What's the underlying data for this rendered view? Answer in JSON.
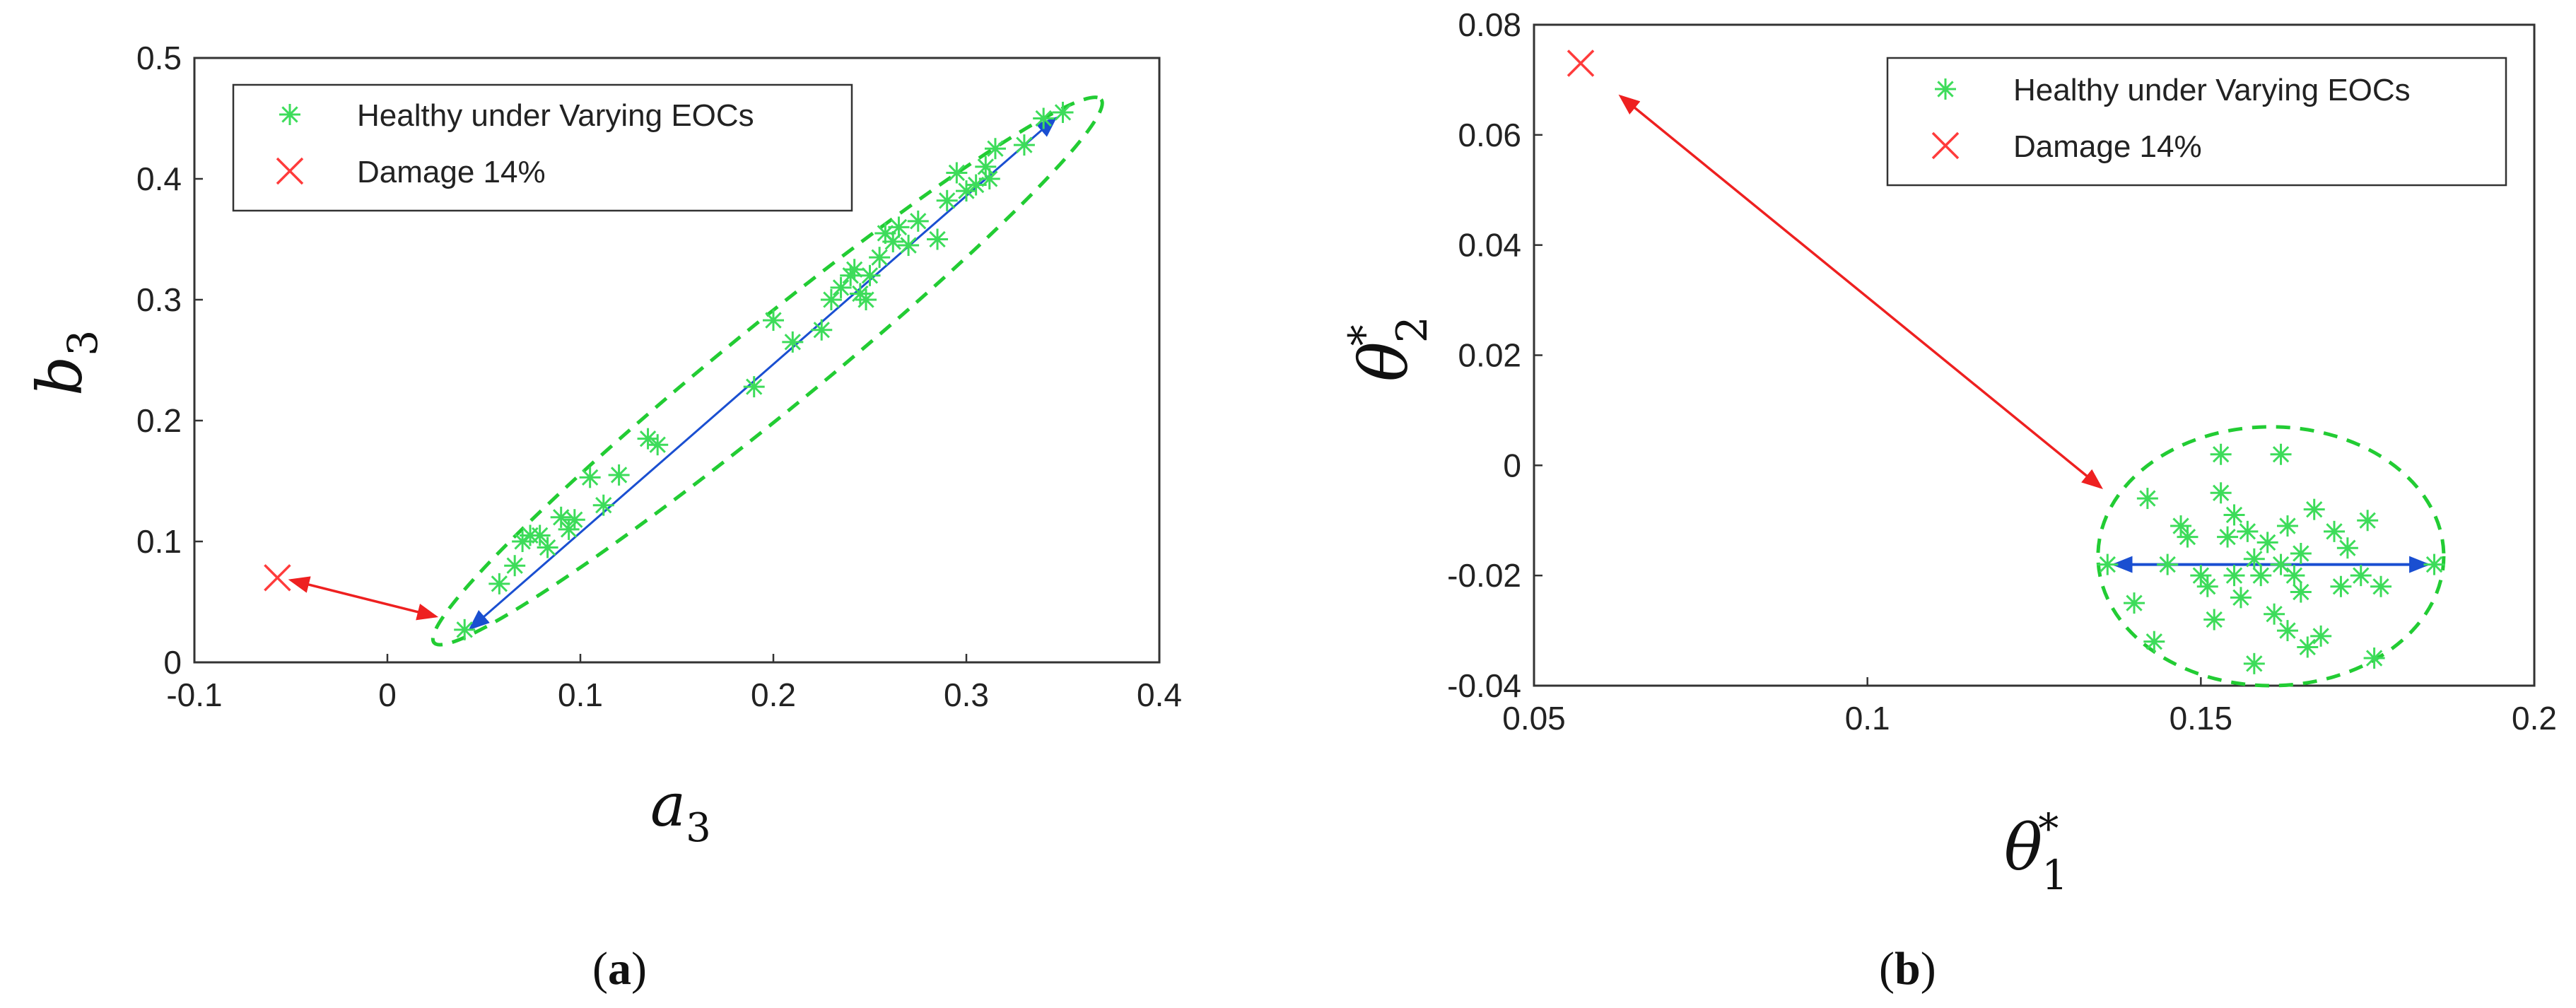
{
  "captions": {
    "a": "a",
    "b": "b"
  },
  "colors": {
    "healthy": "#3ddc5a",
    "damage": "#ff3b3b",
    "ellipse": "#22cc33",
    "blue_arrow": "#1a4fd1",
    "red_arrow": "#ee2020"
  },
  "chart_data": [
    {
      "type": "scatter",
      "panel": "a",
      "xlabel": {
        "base": "a",
        "sub": "3"
      },
      "ylabel": {
        "base": "b",
        "sub": "3"
      },
      "xlim": [
        -0.1,
        0.4
      ],
      "ylim": [
        0,
        0.5
      ],
      "xticks": [
        "-0.1",
        "0",
        "0.1",
        "0.2",
        "0.3",
        "0.4"
      ],
      "yticks": [
        "0",
        "0.1",
        "0.2",
        "0.3",
        "0.4",
        "0.5"
      ],
      "legend": {
        "position": "top-left",
        "entries": [
          {
            "label": "Healthy under Varying EOCs",
            "marker": "asterisk",
            "color": "#3ddc5a"
          },
          {
            "label": "Damage 14%",
            "marker": "x",
            "color": "#ff3b3b"
          }
        ]
      },
      "series": [
        {
          "name": "Healthy under Varying EOCs",
          "marker": "asterisk",
          "points": [
            [
              0.04,
              0.027
            ],
            [
              0.058,
              0.065
            ],
            [
              0.066,
              0.08
            ],
            [
              0.07,
              0.1
            ],
            [
              0.074,
              0.105
            ],
            [
              0.079,
              0.105
            ],
            [
              0.083,
              0.095
            ],
            [
              0.09,
              0.12
            ],
            [
              0.094,
              0.11
            ],
            [
              0.097,
              0.118
            ],
            [
              0.105,
              0.153
            ],
            [
              0.112,
              0.13
            ],
            [
              0.12,
              0.155
            ],
            [
              0.135,
              0.185
            ],
            [
              0.14,
              0.18
            ],
            [
              0.19,
              0.228
            ],
            [
              0.2,
              0.283
            ],
            [
              0.21,
              0.265
            ],
            [
              0.225,
              0.275
            ],
            [
              0.23,
              0.3
            ],
            [
              0.235,
              0.31
            ],
            [
              0.24,
              0.32
            ],
            [
              0.242,
              0.325
            ],
            [
              0.245,
              0.305
            ],
            [
              0.248,
              0.3
            ],
            [
              0.25,
              0.32
            ],
            [
              0.255,
              0.335
            ],
            [
              0.258,
              0.355
            ],
            [
              0.262,
              0.348
            ],
            [
              0.265,
              0.36
            ],
            [
              0.27,
              0.345
            ],
            [
              0.275,
              0.365
            ],
            [
              0.285,
              0.35
            ],
            [
              0.29,
              0.382
            ],
            [
              0.295,
              0.405
            ],
            [
              0.3,
              0.39
            ],
            [
              0.305,
              0.395
            ],
            [
              0.31,
              0.41
            ],
            [
              0.312,
              0.4
            ],
            [
              0.315,
              0.425
            ],
            [
              0.33,
              0.428
            ],
            [
              0.34,
              0.45
            ],
            [
              0.35,
              0.455
            ]
          ]
        },
        {
          "name": "Damage 14%",
          "marker": "x",
          "points": [
            [
              -0.057,
              0.07
            ]
          ]
        }
      ],
      "annotations": {
        "ellipse": {
          "cx": 0.197,
          "cy": 0.239,
          "semi_major_x_range": [
            0.027,
            0.366
          ],
          "note": "dashed"
        },
        "blue_arrow": [
          [
            0.043,
            0.028
          ],
          [
            0.346,
            0.45
          ]
        ],
        "red_arrow": [
          [
            -0.05,
            0.068
          ],
          [
            0.025,
            0.038
          ]
        ]
      }
    },
    {
      "type": "scatter",
      "panel": "b",
      "xlabel": {
        "base": "θ",
        "sub": "1",
        "sup": "*"
      },
      "ylabel": {
        "base": "θ",
        "sub": "2",
        "sup": "*"
      },
      "xlim": [
        0.05,
        0.2
      ],
      "ylim": [
        -0.04,
        0.08
      ],
      "xticks": [
        "0.05",
        "0.1",
        "0.15",
        "0.2"
      ],
      "yticks": [
        "-0.04",
        "-0.02",
        "0",
        "0.02",
        "0.04",
        "0.06",
        "0.08"
      ],
      "legend": {
        "position": "top-right",
        "entries": [
          {
            "label": "Healthy under Varying EOCs",
            "marker": "asterisk",
            "color": "#3ddc5a"
          },
          {
            "label": "Damage 14%",
            "marker": "x",
            "color": "#ff3b3b"
          }
        ]
      },
      "series": [
        {
          "name": "Healthy under Varying EOCs",
          "marker": "asterisk",
          "points": [
            [
              0.136,
              -0.018
            ],
            [
              0.14,
              -0.025
            ],
            [
              0.142,
              -0.006
            ],
            [
              0.143,
              -0.032
            ],
            [
              0.145,
              -0.018
            ],
            [
              0.147,
              -0.011
            ],
            [
              0.148,
              -0.013
            ],
            [
              0.15,
              -0.02
            ],
            [
              0.151,
              -0.022
            ],
            [
              0.152,
              -0.028
            ],
            [
              0.153,
              -0.005
            ],
            [
              0.153,
              0.002
            ],
            [
              0.154,
              -0.013
            ],
            [
              0.155,
              -0.009
            ],
            [
              0.155,
              -0.02
            ],
            [
              0.156,
              -0.024
            ],
            [
              0.157,
              -0.012
            ],
            [
              0.158,
              -0.017
            ],
            [
              0.158,
              -0.036
            ],
            [
              0.159,
              -0.02
            ],
            [
              0.16,
              -0.014
            ],
            [
              0.161,
              -0.027
            ],
            [
              0.162,
              -0.018
            ],
            [
              0.162,
              0.002
            ],
            [
              0.163,
              -0.03
            ],
            [
              0.163,
              -0.011
            ],
            [
              0.164,
              -0.02
            ],
            [
              0.165,
              -0.016
            ],
            [
              0.165,
              -0.023
            ],
            [
              0.166,
              -0.033
            ],
            [
              0.167,
              -0.008
            ],
            [
              0.168,
              -0.031
            ],
            [
              0.17,
              -0.012
            ],
            [
              0.171,
              -0.022
            ],
            [
              0.172,
              -0.015
            ],
            [
              0.174,
              -0.02
            ],
            [
              0.175,
              -0.01
            ],
            [
              0.176,
              -0.035
            ],
            [
              0.177,
              -0.022
            ],
            [
              0.185,
              -0.018
            ]
          ]
        },
        {
          "name": "Damage 14%",
          "marker": "x",
          "points": [
            [
              0.057,
              0.073
            ]
          ]
        }
      ],
      "annotations": {
        "ellipse": {
          "cx": 0.16,
          "cy": -0.016,
          "note": "dashed"
        },
        "blue_arrow": [
          [
            0.137,
            -0.018
          ],
          [
            0.184,
            -0.018
          ]
        ],
        "red_arrow": [
          [
            0.063,
            0.067
          ],
          [
            0.135,
            -0.004
          ]
        ]
      }
    }
  ]
}
